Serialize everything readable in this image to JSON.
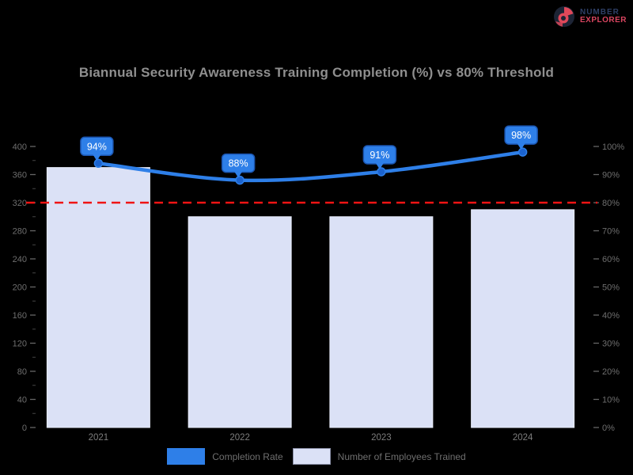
{
  "brand": {
    "line1": "NUMBER",
    "line2": "EXPLORER"
  },
  "chart_data": {
    "type": "bar+line combo",
    "title": "Biannual Security Awareness Training Completion (%) vs 80% Threshold",
    "categories": [
      "2021",
      "2022",
      "2023",
      "2024"
    ],
    "series": [
      {
        "name": "Completion Rate",
        "type": "line",
        "axis": "right",
        "values": [
          94,
          88,
          91,
          98
        ],
        "point_labels": [
          "94%",
          "88%",
          "91%",
          "98%"
        ],
        "color": "#2e7fe8",
        "marker_color": "#1b63cf",
        "label_box_color": "#2e7fe8",
        "label_text_color": "#ffffff"
      },
      {
        "name": "Number of Employees Trained",
        "type": "bar",
        "axis": "left",
        "values": [
          370,
          300,
          300,
          310
        ],
        "color": "#dbe1f6",
        "edge_color": "#e9edfb"
      }
    ],
    "threshold": {
      "value": 80,
      "axis": "right",
      "color": "#f01414",
      "style": "dashed"
    },
    "left_axis": {
      "min": 0,
      "max": 400,
      "step": 40,
      "ticks": [
        "400",
        "360",
        "320",
        "280",
        "240",
        "200",
        "160",
        "120",
        "80",
        "40",
        "0"
      ]
    },
    "right_axis": {
      "min": 0,
      "max": 100,
      "step": 10,
      "ticks": [
        "100%",
        "90%",
        "80%",
        "70%",
        "60%",
        "50%",
        "40%",
        "30%",
        "20%",
        "10%",
        "0%"
      ]
    },
    "xlabel": "",
    "ylabel": "",
    "grid": false,
    "legend_position": "bottom",
    "colors": {
      "background": "#000000",
      "title": "#8f8f8f",
      "tick_label": "#6e6e6e",
      "x_tick_label": "#7d7d7d",
      "legend_text": "#6f6f6f"
    }
  },
  "legend": [
    {
      "label": "Completion Rate",
      "color": "#2e7fe8"
    },
    {
      "label": "Number of Employees Trained",
      "color": "#dbe1f6"
    }
  ]
}
